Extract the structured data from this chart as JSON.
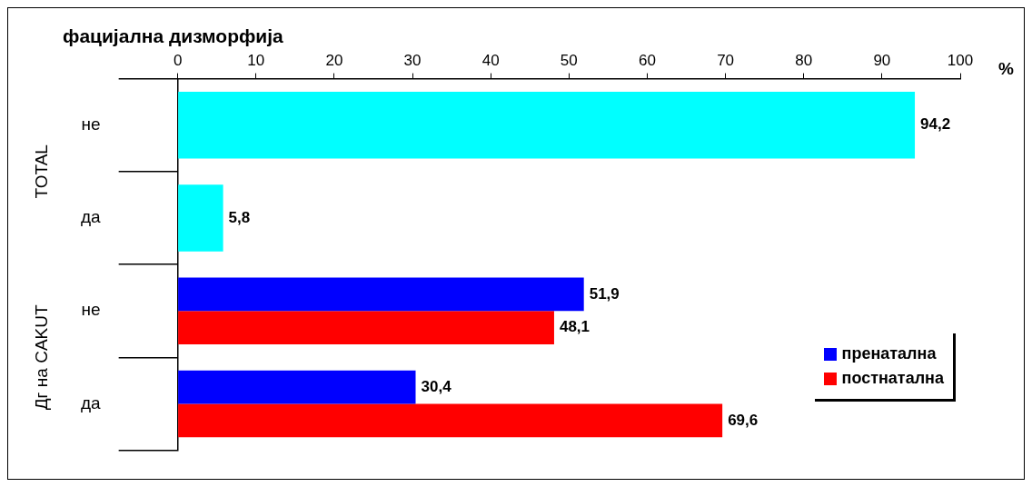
{
  "chart_data": {
    "type": "bar",
    "orientation": "horizontal",
    "title": "фацијална дизморфија",
    "xlabel": "%",
    "categories": [
      "не",
      "да",
      "не",
      "да"
    ],
    "annotations": [
      "TOTAL",
      "Дг на CAKUT"
    ],
    "series": [
      {
        "color": "#00ffff",
        "values": [
          94.2,
          5.8,
          null,
          null
        ],
        "value_labels": [
          "94,2",
          "5,8",
          null,
          null
        ]
      },
      {
        "name": "пренатална",
        "color": "#0000ff",
        "values": [
          null,
          null,
          51.9,
          30.4
        ],
        "value_labels": [
          null,
          null,
          "51,9",
          "30,4"
        ]
      },
      {
        "name": "постнатална",
        "color": "#ff0000",
        "values": [
          null,
          null,
          48.1,
          69.6
        ],
        "value_labels": [
          null,
          null,
          "48,1",
          "69,6"
        ]
      }
    ],
    "xlim": [
      0,
      100
    ],
    "xticks": [
      0,
      10,
      20,
      30,
      40,
      50,
      60,
      70,
      80,
      90,
      100
    ],
    "legend": "bottom right"
  }
}
